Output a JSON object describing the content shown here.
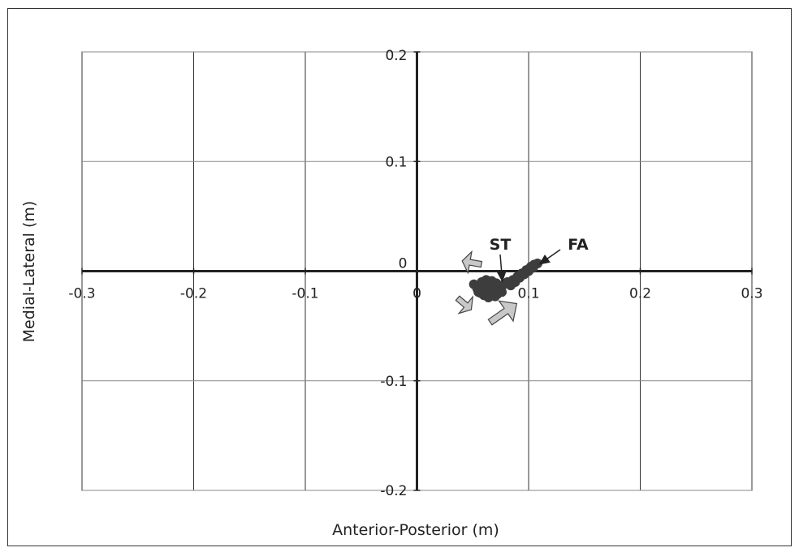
{
  "chart_data": {
    "type": "scatter",
    "title": "",
    "xlabel": "Anterior-Posterior (m)",
    "ylabel": "Medial-Lateral (m)",
    "xlim": [
      -0.3,
      0.3
    ],
    "ylim": [
      -0.2,
      0.2
    ],
    "x_ticks": [
      -0.3,
      -0.2,
      -0.1,
      0,
      0.1,
      0.2,
      0.3
    ],
    "y_ticks": [
      0.2,
      0.1,
      0,
      -0.1,
      -0.2
    ],
    "x_tick_labels": [
      "-0.3",
      "-0.2",
      "-0.1",
      "0",
      "0.1",
      "0.2",
      "0.3"
    ],
    "y_tick_labels": [
      "0.2",
      "0.1",
      "0",
      "-0.1",
      "-0.2"
    ],
    "grid": true,
    "legend": "none",
    "series": [
      {
        "label": "ST",
        "color": "#3d3d3d",
        "points": [
          [
            0.051,
            -0.012
          ],
          [
            0.054,
            -0.016
          ],
          [
            0.057,
            -0.02
          ],
          [
            0.06,
            -0.022
          ],
          [
            0.063,
            -0.018
          ],
          [
            0.066,
            -0.014
          ],
          [
            0.069,
            -0.017
          ],
          [
            0.072,
            -0.021
          ],
          [
            0.075,
            -0.016
          ],
          [
            0.078,
            -0.012
          ],
          [
            0.081,
            -0.01
          ],
          [
            0.058,
            -0.01
          ],
          [
            0.062,
            -0.008
          ],
          [
            0.067,
            -0.009
          ],
          [
            0.071,
            -0.011
          ],
          [
            0.055,
            -0.019
          ],
          [
            0.064,
            -0.024
          ],
          [
            0.07,
            -0.023
          ],
          [
            0.076,
            -0.019
          ],
          [
            0.06,
            -0.014
          ]
        ]
      },
      {
        "label": "FA",
        "color": "#3d3d3d",
        "points": [
          [
            0.082,
            -0.011
          ],
          [
            0.086,
            -0.008
          ],
          [
            0.09,
            -0.005
          ],
          [
            0.094,
            -0.002
          ],
          [
            0.098,
            0.001
          ],
          [
            0.102,
            0.004
          ],
          [
            0.105,
            0.006
          ],
          [
            0.108,
            0.007
          ],
          [
            0.084,
            -0.013
          ],
          [
            0.088,
            -0.01
          ],
          [
            0.092,
            -0.006
          ],
          [
            0.096,
            -0.003
          ],
          [
            0.1,
            0
          ],
          [
            0.104,
            0.003
          ]
        ]
      }
    ],
    "annotations": [
      {
        "text": "ST",
        "points_to": [
          0.075,
          -0.012
        ]
      },
      {
        "text": "FA",
        "points_to": [
          0.107,
          0.005
        ]
      }
    ]
  },
  "colors": {
    "marker": "#3d3d3d",
    "arrow_fill": "#c8c8c8",
    "arrow_stroke": "#444444",
    "grid": "#333333"
  }
}
